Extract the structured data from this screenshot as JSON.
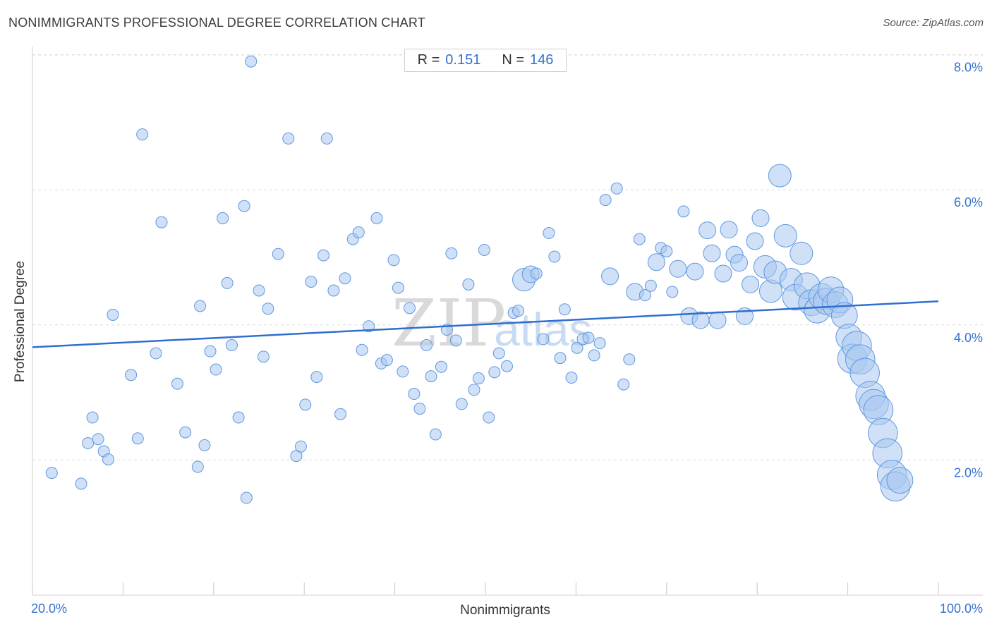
{
  "header": {
    "title": "NONIMMIGRANTS PROFESSIONAL DEGREE CORRELATION CHART",
    "source": "Source: ZipAtlas.com"
  },
  "stats": {
    "r_label": "R =",
    "r_value": "0.151",
    "n_label": "N =",
    "n_value": "146"
  },
  "watermark": {
    "zip": "ZIP",
    "atlas": "atlas"
  },
  "colors": {
    "point_fill": "#a9c8f0",
    "point_stroke": "#5f97e0",
    "trend": "#2f6fce",
    "grid": "#dcdcdc",
    "tick_text": "#3572d0"
  },
  "chart_data": {
    "type": "scatter",
    "title": "NONIMMIGRANTS PROFESSIONAL DEGREE CORRELATION CHART",
    "xlabel": "Nonimmigrants",
    "ylabel": "Professional Degree",
    "xlim": [
      20,
      100
    ],
    "ylim": [
      0,
      8.2
    ],
    "x_tick_labels": [
      "20.0%",
      "100.0%"
    ],
    "y_ticks": [
      2,
      4,
      6,
      8
    ],
    "y_tick_labels": [
      "2.0%",
      "4.0%",
      "6.0%",
      "8.0%"
    ],
    "grid": "horizontal dashed",
    "trend": {
      "x": [
        20,
        100
      ],
      "y": [
        3.67,
        4.35
      ]
    },
    "points": [
      [
        21.7,
        1.81,
        1
      ],
      [
        24.3,
        1.65,
        1
      ],
      [
        25.3,
        2.63,
        1
      ],
      [
        24.9,
        2.25,
        1
      ],
      [
        25.8,
        2.31,
        1
      ],
      [
        26.3,
        2.13,
        1
      ],
      [
        26.7,
        2.01,
        1
      ],
      [
        27.1,
        4.15,
        1
      ],
      [
        28.7,
        3.26,
        1
      ],
      [
        29.3,
        2.32,
        1
      ],
      [
        29.7,
        6.82,
        1
      ],
      [
        30.9,
        3.58,
        1
      ],
      [
        31.4,
        5.52,
        1
      ],
      [
        32.8,
        3.13,
        1
      ],
      [
        33.5,
        2.41,
        1
      ],
      [
        34.6,
        1.9,
        1
      ],
      [
        34.8,
        4.28,
        1
      ],
      [
        35.2,
        2.22,
        1
      ],
      [
        35.7,
        3.61,
        1
      ],
      [
        36.2,
        3.34,
        1
      ],
      [
        36.8,
        5.58,
        1
      ],
      [
        37.2,
        4.62,
        1
      ],
      [
        37.6,
        3.7,
        1
      ],
      [
        38.2,
        2.63,
        1
      ],
      [
        38.7,
        5.76,
        1
      ],
      [
        39.3,
        7.9,
        1
      ],
      [
        38.9,
        1.44,
        1
      ],
      [
        40.0,
        4.51,
        1
      ],
      [
        40.8,
        4.24,
        1
      ],
      [
        40.4,
        3.53,
        1
      ],
      [
        41.7,
        5.05,
        1
      ],
      [
        42.6,
        6.76,
        1
      ],
      [
        43.3,
        2.06,
        1
      ],
      [
        43.7,
        2.2,
        1
      ],
      [
        44.1,
        2.82,
        1
      ],
      [
        44.6,
        4.64,
        1
      ],
      [
        45.1,
        3.23,
        1
      ],
      [
        45.7,
        5.03,
        1
      ],
      [
        46.0,
        6.76,
        1
      ],
      [
        46.6,
        4.51,
        1
      ],
      [
        47.2,
        2.68,
        1
      ],
      [
        47.6,
        4.69,
        1
      ],
      [
        48.3,
        5.27,
        1
      ],
      [
        48.8,
        5.37,
        1
      ],
      [
        49.1,
        3.63,
        1
      ],
      [
        49.7,
        3.98,
        1
      ],
      [
        50.4,
        5.58,
        1
      ],
      [
        50.8,
        3.43,
        1
      ],
      [
        51.3,
        3.48,
        1
      ],
      [
        51.9,
        4.96,
        1
      ],
      [
        52.3,
        4.55,
        1
      ],
      [
        52.7,
        3.31,
        1
      ],
      [
        53.3,
        4.25,
        1
      ],
      [
        53.7,
        2.98,
        1
      ],
      [
        54.2,
        2.76,
        1
      ],
      [
        54.8,
        3.7,
        1
      ],
      [
        55.2,
        3.24,
        1
      ],
      [
        55.6,
        2.38,
        1
      ],
      [
        56.1,
        3.38,
        1
      ],
      [
        56.6,
        3.93,
        1
      ],
      [
        57.0,
        5.06,
        1
      ],
      [
        57.4,
        3.77,
        1
      ],
      [
        57.9,
        2.83,
        1
      ],
      [
        58.5,
        4.6,
        1
      ],
      [
        59.0,
        3.04,
        1
      ],
      [
        59.4,
        3.21,
        1
      ],
      [
        59.9,
        5.11,
        1
      ],
      [
        60.3,
        2.63,
        1
      ],
      [
        60.8,
        3.3,
        1
      ],
      [
        61.2,
        3.58,
        1
      ],
      [
        61.9,
        3.39,
        1
      ],
      [
        62.5,
        4.18,
        1
      ],
      [
        62.9,
        4.21,
        1
      ],
      [
        63.4,
        4.67,
        2
      ],
      [
        64.0,
        4.75,
        1.5
      ],
      [
        64.5,
        4.76,
        1
      ],
      [
        65.1,
        3.79,
        1
      ],
      [
        65.6,
        5.36,
        1
      ],
      [
        66.1,
        5.01,
        1
      ],
      [
        66.6,
        3.51,
        1
      ],
      [
        67.0,
        4.23,
        1
      ],
      [
        67.6,
        3.22,
        1
      ],
      [
        68.1,
        3.66,
        1
      ],
      [
        68.6,
        3.79,
        1
      ],
      [
        69.1,
        3.81,
        1
      ],
      [
        69.6,
        3.55,
        1
      ],
      [
        70.1,
        3.73,
        1
      ],
      [
        70.6,
        5.85,
        1
      ],
      [
        71.0,
        4.72,
        1.5
      ],
      [
        71.6,
        6.02,
        1
      ],
      [
        72.2,
        3.12,
        1
      ],
      [
        72.7,
        3.49,
        1
      ],
      [
        73.2,
        4.49,
        1.5
      ],
      [
        73.6,
        5.27,
        1
      ],
      [
        74.1,
        4.44,
        1
      ],
      [
        74.6,
        4.58,
        1
      ],
      [
        75.1,
        4.93,
        1.5
      ],
      [
        75.5,
        5.14,
        1
      ],
      [
        76.0,
        5.09,
        1
      ],
      [
        76.5,
        4.49,
        1
      ],
      [
        77.0,
        4.83,
        1.5
      ],
      [
        77.5,
        5.68,
        1
      ],
      [
        78.0,
        4.13,
        1.5
      ],
      [
        78.5,
        4.79,
        1.5
      ],
      [
        79.0,
        4.07,
        1.5
      ],
      [
        79.6,
        5.4,
        1.5
      ],
      [
        80.0,
        5.06,
        1.5
      ],
      [
        80.5,
        4.07,
        1.5
      ],
      [
        81.0,
        4.76,
        1.5
      ],
      [
        81.5,
        5.41,
        1.5
      ],
      [
        82.0,
        5.04,
        1.5
      ],
      [
        82.4,
        4.92,
        1.5
      ],
      [
        82.9,
        4.13,
        1.5
      ],
      [
        83.4,
        4.6,
        1.5
      ],
      [
        83.8,
        5.24,
        1.5
      ],
      [
        84.3,
        5.58,
        1.5
      ],
      [
        84.7,
        4.86,
        2
      ],
      [
        85.2,
        4.5,
        2
      ],
      [
        85.6,
        4.78,
        2
      ],
      [
        86.0,
        6.21,
        2
      ],
      [
        86.5,
        5.32,
        2
      ],
      [
        87.0,
        4.67,
        2
      ],
      [
        87.4,
        4.41,
        2.3
      ],
      [
        87.9,
        5.06,
        2
      ],
      [
        88.4,
        4.58,
        2.3
      ],
      [
        88.8,
        4.33,
        2.3
      ],
      [
        89.3,
        4.22,
        2.3
      ],
      [
        89.7,
        4.42,
        2.3
      ],
      [
        90.1,
        4.35,
        2.3
      ],
      [
        90.5,
        4.52,
        2.3
      ],
      [
        90.9,
        4.3,
        2.3
      ],
      [
        91.3,
        4.37,
        2.3
      ],
      [
        91.7,
        4.14,
        2.3
      ],
      [
        92.1,
        3.82,
        2.3
      ],
      [
        92.4,
        3.5,
        2.6
      ],
      [
        92.8,
        3.69,
        2.6
      ],
      [
        93.1,
        3.49,
        2.6
      ],
      [
        93.5,
        3.29,
        2.6
      ],
      [
        94.0,
        2.95,
        2.6
      ],
      [
        94.3,
        2.83,
        2.6
      ],
      [
        94.7,
        2.74,
        2.6
      ],
      [
        95.1,
        2.4,
        2.6
      ],
      [
        95.5,
        2.1,
        2.6
      ],
      [
        95.9,
        1.78,
        2.6
      ],
      [
        96.2,
        1.61,
        2.6
      ],
      [
        96.6,
        1.7,
        2.3
      ]
    ]
  }
}
